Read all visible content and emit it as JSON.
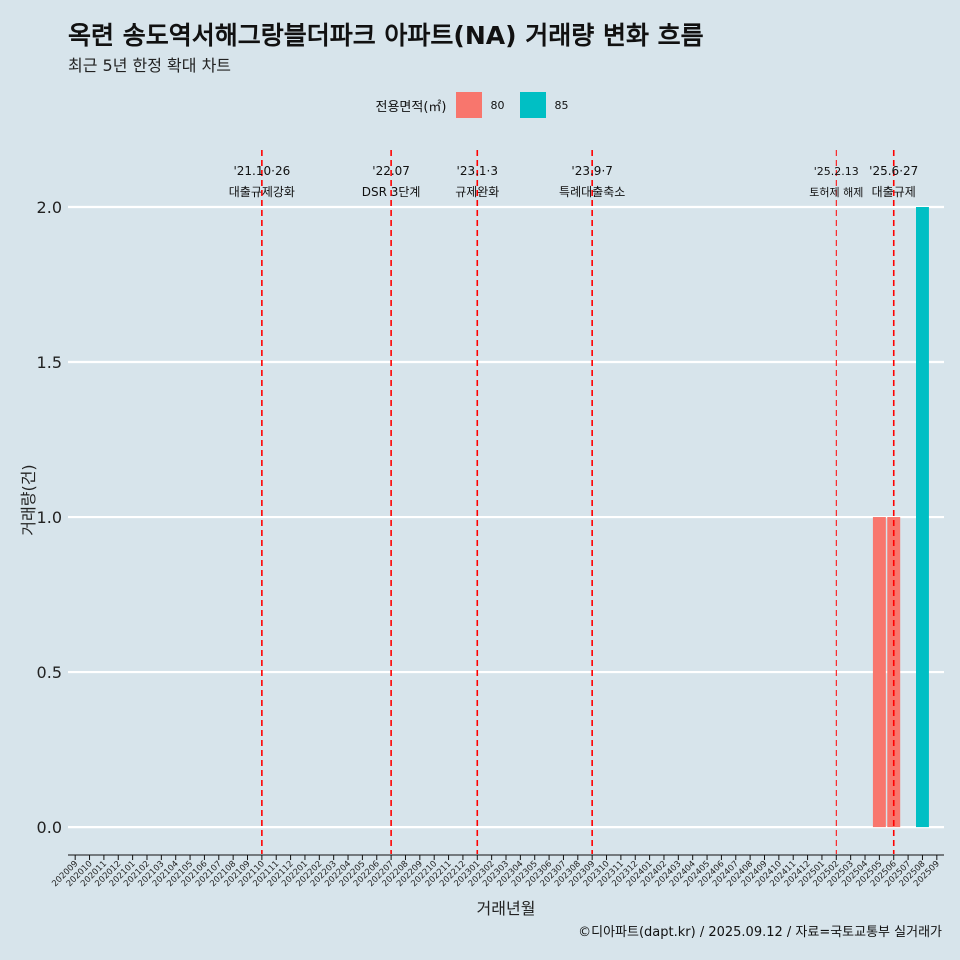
{
  "header": {
    "title": "옥련 송도역서해그랑블더파크 아파트(NA) 거래량 변화 흐름",
    "subtitle": "최근 5년 한정 확대 차트"
  },
  "footer": {
    "caption": "©디아파트(dapt.kr) / 2025.09.12 / 자료=국토교통부 실거래가"
  },
  "chart_data": {
    "type": "bar",
    "title": "옥련 송도역서해그랑블더파크 아파트(NA) 거래량 변화 흐름",
    "subtitle": "최근 5년 한정 확대 차트",
    "xlabel": "거래년월",
    "ylabel": "거래량(건)",
    "ylim": [
      -0.09,
      2.2
    ],
    "y_ticks": [
      0.0,
      0.5,
      1.0,
      1.5,
      2.0
    ],
    "y_tick_labels": [
      "0.0",
      "0.5",
      "1.0",
      "1.5",
      "2.0"
    ],
    "grid": "horizontal major lines",
    "legend": {
      "title": "전용면적(㎡)",
      "placement": "top-center",
      "entries": [
        {
          "name": "80",
          "color": "#F8766D"
        },
        {
          "name": "85",
          "color": "#00BFC4"
        }
      ]
    },
    "categories": [
      "202009",
      "202010",
      "202011",
      "202012",
      "202101",
      "202102",
      "202103",
      "202104",
      "202105",
      "202106",
      "202107",
      "202108",
      "202109",
      "202110",
      "202111",
      "202112",
      "202201",
      "202202",
      "202203",
      "202204",
      "202205",
      "202206",
      "202207",
      "202208",
      "202209",
      "202210",
      "202211",
      "202212",
      "202301",
      "202302",
      "202303",
      "202304",
      "202305",
      "202306",
      "202307",
      "202308",
      "202309",
      "202310",
      "202311",
      "202312",
      "202401",
      "202402",
      "202403",
      "202404",
      "202405",
      "202406",
      "202407",
      "202408",
      "202409",
      "202410",
      "202411",
      "202412",
      "202501",
      "202502",
      "202503",
      "202504",
      "202505",
      "202506",
      "202507",
      "202508",
      "202509"
    ],
    "series": [
      {
        "name": "80",
        "color": "#F8766D",
        "points": [
          {
            "x": "202505",
            "value": 1
          },
          {
            "x": "202506",
            "value": 1
          }
        ]
      },
      {
        "name": "85",
        "color": "#00BFC4",
        "points": [
          {
            "x": "202508",
            "value": 2
          }
        ]
      }
    ],
    "annotations": [
      {
        "x": "202110",
        "line1": "'21.10·26",
        "line2": "대출규제강화",
        "style": "dashed",
        "color": "#FF0000"
      },
      {
        "x": "202207",
        "line1": "'22.07",
        "line2": "DSR 3단계",
        "style": "dashed",
        "color": "#FF0000"
      },
      {
        "x": "202301",
        "line1": "'23.1·3",
        "line2": "규제완화",
        "style": "dashed",
        "color": "#FF0000"
      },
      {
        "x": "202309",
        "line1": "'23.9·7",
        "line2": "특례대출축소",
        "style": "dashed",
        "color": "#FF0000"
      },
      {
        "x": "202502",
        "line1": "'25.2.13",
        "line2": "토허제 해제",
        "style": "dashed-thin",
        "color": "#FF0000"
      },
      {
        "x": "202506",
        "line1": "'25.6·27",
        "line2": "대출규제",
        "style": "dashed",
        "color": "#FF0000"
      }
    ]
  }
}
